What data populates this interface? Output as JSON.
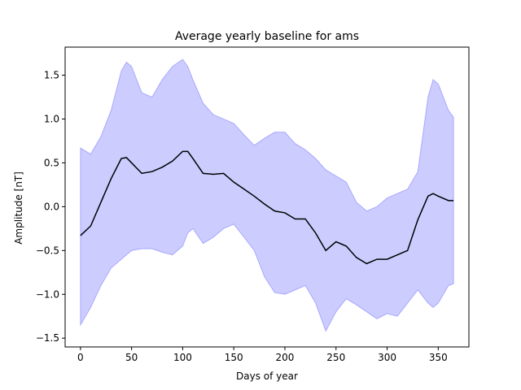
{
  "chart_data": {
    "type": "line",
    "title": "Average yearly baseline for ams",
    "xlabel": "Days of year",
    "ylabel": "Amplitude [nT]",
    "xlim": [
      -15,
      380
    ],
    "ylim": [
      -1.6,
      1.82
    ],
    "xticks": [
      0,
      50,
      100,
      150,
      200,
      250,
      300,
      350
    ],
    "xtick_labels": [
      "0",
      "50",
      "100",
      "150",
      "200",
      "250",
      "300",
      "350"
    ],
    "yticks": [
      -1.5,
      -1.0,
      -0.5,
      0.0,
      0.5,
      1.0,
      1.5
    ],
    "ytick_labels": [
      "−1.5",
      "−1.0",
      "−0.5",
      "0.0",
      "0.5",
      "1.0",
      "1.5"
    ],
    "grid": false,
    "colors": {
      "line": "#000000",
      "band": "#0000ff",
      "band_opacity": 0.2
    },
    "x": [
      0,
      10,
      20,
      30,
      40,
      45,
      50,
      60,
      70,
      80,
      90,
      100,
      105,
      110,
      120,
      130,
      140,
      150,
      160,
      170,
      180,
      190,
      200,
      210,
      220,
      230,
      240,
      250,
      260,
      270,
      280,
      290,
      300,
      310,
      320,
      330,
      340,
      345,
      350,
      360,
      365
    ],
    "series": [
      {
        "values": [
          -0.33,
          -0.22,
          0.05,
          0.32,
          0.55,
          0.56,
          0.5,
          0.38,
          0.4,
          0.45,
          0.52,
          0.63,
          0.63,
          0.55,
          0.38,
          0.37,
          0.38,
          0.28,
          0.2,
          0.12,
          0.03,
          -0.05,
          -0.07,
          -0.14,
          -0.14,
          -0.3,
          -0.5,
          -0.4,
          -0.45,
          -0.58,
          -0.65,
          -0.6,
          -0.6,
          -0.55,
          -0.5,
          -0.15,
          0.12,
          0.15,
          0.12,
          0.07,
          0.07
        ]
      }
    ],
    "band": {
      "upper": [
        0.67,
        0.6,
        0.8,
        1.1,
        1.55,
        1.65,
        1.6,
        1.3,
        1.25,
        1.45,
        1.6,
        1.68,
        1.6,
        1.45,
        1.18,
        1.05,
        1.0,
        0.95,
        0.82,
        0.7,
        0.78,
        0.85,
        0.85,
        0.72,
        0.65,
        0.55,
        0.42,
        0.35,
        0.28,
        0.05,
        -0.05,
        0.0,
        0.1,
        0.15,
        0.2,
        0.4,
        1.25,
        1.45,
        1.4,
        1.1,
        1.02
      ],
      "lower": [
        -1.35,
        -1.15,
        -0.9,
        -0.7,
        -0.6,
        -0.55,
        -0.5,
        -0.48,
        -0.48,
        -0.52,
        -0.55,
        -0.45,
        -0.3,
        -0.25,
        -0.42,
        -0.35,
        -0.25,
        -0.2,
        -0.35,
        -0.5,
        -0.8,
        -0.98,
        -1.0,
        -0.95,
        -0.9,
        -1.1,
        -1.42,
        -1.2,
        -1.05,
        -1.12,
        -1.2,
        -1.28,
        -1.22,
        -1.25,
        -1.1,
        -0.95,
        -1.1,
        -1.15,
        -1.1,
        -0.9,
        -0.88
      ]
    }
  }
}
